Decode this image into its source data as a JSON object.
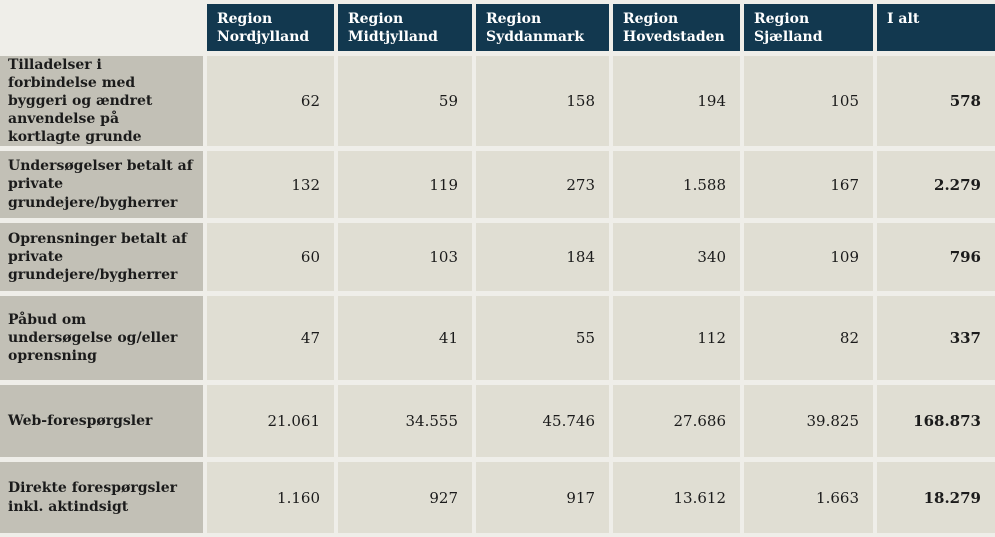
{
  "page": {
    "background": "#efeee9"
  },
  "colors": {
    "header_bg": "#12384f",
    "header_text": "#ffffff",
    "row_label_bg": "#c2c0b6",
    "data_cell_bg": "#e0ded3",
    "text": "#1b1b1b"
  },
  "table": {
    "header": {
      "columns": [
        "Region Nordjylland",
        "Region Midtjylland",
        "Region Syddanmark",
        "Region Hovedstaden",
        "Region Sjælland",
        "I alt"
      ]
    },
    "rows": [
      {
        "label": "Tilladelser i forbindelse med byggeri og ændret anvendelse på kortlagte grunde",
        "values": [
          "62",
          "59",
          "158",
          "194",
          "105",
          "578"
        ]
      },
      {
        "label": "Undersøgelser betalt af private grundejere/bygherrer",
        "values": [
          "132",
          "119",
          "273",
          "1.588",
          "167",
          "2.279"
        ]
      },
      {
        "label": "Oprensninger betalt af private grundejere/bygherrer",
        "values": [
          "60",
          "103",
          "184",
          "340",
          "109",
          "796"
        ]
      },
      {
        "label": "Påbud om undersøgelse og/eller oprensning",
        "values": [
          "47",
          "41",
          "55",
          "112",
          "82",
          "337"
        ]
      },
      {
        "label": "Web-forespørgsler",
        "values": [
          "21.061",
          "34.555",
          "45.746",
          "27.686",
          "39.825",
          "168.873"
        ]
      },
      {
        "label": "Direkte forespørgsler inkl. aktindsigt",
        "values": [
          "1.160",
          "927",
          "917",
          "13.612",
          "1.663",
          "18.279"
        ]
      }
    ]
  },
  "chart_data": {
    "type": "table",
    "title": "",
    "columns": [
      "Region Nordjylland",
      "Region Midtjylland",
      "Region Syddanmark",
      "Region Hovedstaden",
      "Region Sjælland",
      "I alt"
    ],
    "row_labels": [
      "Tilladelser i forbindelse med byggeri og ændret anvendelse på kortlagte grunde",
      "Undersøgelser betalt af private grundejere/bygherrer",
      "Oprensninger betalt af private grundejere/bygherrer",
      "Påbud om undersøgelse og/eller oprensning",
      "Web-forespørgsler",
      "Direkte forespørgsler inkl. aktindsigt"
    ],
    "values": [
      [
        62,
        59,
        158,
        194,
        105,
        578
      ],
      [
        132,
        119,
        273,
        1588,
        167,
        2279
      ],
      [
        60,
        103,
        184,
        340,
        109,
        796
      ],
      [
        47,
        41,
        55,
        112,
        82,
        337
      ],
      [
        21061,
        34555,
        45746,
        27686,
        39825,
        168873
      ],
      [
        1160,
        927,
        917,
        13612,
        1663,
        18279
      ]
    ],
    "number_format": "da-DK thousands separator '.'",
    "notes": "Last column 'I alt' is the row total, rendered bold"
  }
}
